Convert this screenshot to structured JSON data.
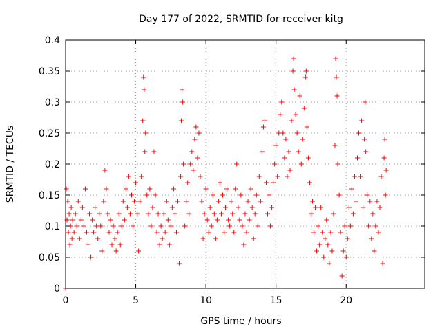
{
  "chart_data": {
    "type": "scatter",
    "title": "Day 177 of 2022, SRMTID for receiver kitg",
    "xlabel": "GPS time / hours",
    "ylabel": "SRMTID / TECUs",
    "xlim": [
      0,
      25.6
    ],
    "ylim": [
      0,
      0.4
    ],
    "xticks": [
      0,
      5,
      10,
      15,
      20
    ],
    "xtick_labels": [
      "0",
      "5",
      "10",
      "15",
      "20"
    ],
    "yticks": [
      0,
      0.05,
      0.1,
      0.15,
      0.2,
      0.25,
      0.3,
      0.35,
      0.4
    ],
    "ytick_labels": [
      "0",
      "0.05",
      "0.1",
      "0.15",
      "0.2",
      "0.25",
      "0.3",
      "0.35",
      "0.4"
    ],
    "grid": true,
    "marker": "+",
    "color": "#ff0000",
    "series": [
      {
        "name": "SRMTID",
        "points": [
          [
            0.0,
            0.0
          ],
          [
            0.05,
            0.16
          ],
          [
            0.1,
            0.11
          ],
          [
            0.15,
            0.14
          ],
          [
            0.2,
            0.09
          ],
          [
            0.25,
            0.12
          ],
          [
            0.3,
            0.07
          ],
          [
            0.35,
            0.1
          ],
          [
            0.4,
            0.13
          ],
          [
            0.45,
            0.08
          ],
          [
            0.5,
            0.11
          ],
          [
            0.6,
            0.09
          ],
          [
            0.7,
            0.12
          ],
          [
            0.8,
            0.1
          ],
          [
            0.9,
            0.14
          ],
          [
            1.0,
            0.08
          ],
          [
            1.1,
            0.11
          ],
          [
            1.2,
            0.13
          ],
          [
            1.3,
            0.1
          ],
          [
            1.4,
            0.16
          ],
          [
            1.5,
            0.09
          ],
          [
            1.6,
            0.07
          ],
          [
            1.7,
            0.12
          ],
          [
            1.8,
            0.05
          ],
          [
            1.9,
            0.11
          ],
          [
            2.0,
            0.09
          ],
          [
            2.1,
            0.13
          ],
          [
            2.2,
            0.1
          ],
          [
            2.3,
            0.08
          ],
          [
            2.4,
            0.12
          ],
          [
            2.5,
            0.1
          ],
          [
            2.6,
            0.06
          ],
          [
            2.7,
            0.14
          ],
          [
            2.8,
            0.19
          ],
          [
            2.9,
            0.16
          ],
          [
            3.0,
            0.12
          ],
          [
            3.1,
            0.09
          ],
          [
            3.2,
            0.11
          ],
          [
            3.3,
            0.07
          ],
          [
            3.4,
            0.1
          ],
          [
            3.5,
            0.08
          ],
          [
            3.6,
            0.06
          ],
          [
            3.7,
            0.09
          ],
          [
            3.8,
            0.12
          ],
          [
            3.9,
            0.07
          ],
          [
            4.0,
            0.1
          ],
          [
            4.1,
            0.14
          ],
          [
            4.2,
            0.11
          ],
          [
            4.3,
            0.16
          ],
          [
            4.4,
            0.13
          ],
          [
            4.5,
            0.18
          ],
          [
            4.6,
            0.12
          ],
          [
            4.7,
            0.15
          ],
          [
            4.8,
            0.1
          ],
          [
            4.9,
            0.14
          ],
          [
            5.0,
            0.17
          ],
          [
            5.1,
            0.12
          ],
          [
            5.2,
            0.06
          ],
          [
            5.3,
            0.14
          ],
          [
            5.4,
            0.18
          ],
          [
            5.5,
            0.27
          ],
          [
            5.55,
            0.34
          ],
          [
            5.6,
            0.32
          ],
          [
            5.65,
            0.22
          ],
          [
            5.7,
            0.25
          ],
          [
            5.8,
            0.15
          ],
          [
            5.9,
            0.12
          ],
          [
            6.0,
            0.16
          ],
          [
            6.1,
            0.1
          ],
          [
            6.2,
            0.13
          ],
          [
            6.3,
            0.22
          ],
          [
            6.4,
            0.15
          ],
          [
            6.5,
            0.09
          ],
          [
            6.6,
            0.12
          ],
          [
            6.7,
            0.07
          ],
          [
            6.8,
            0.1
          ],
          [
            6.9,
            0.08
          ],
          [
            7.0,
            0.12
          ],
          [
            7.1,
            0.09
          ],
          [
            7.2,
            0.14
          ],
          [
            7.3,
            0.11
          ],
          [
            7.4,
            0.07
          ],
          [
            7.5,
            0.1
          ],
          [
            7.6,
            0.13
          ],
          [
            7.7,
            0.16
          ],
          [
            7.8,
            0.12
          ],
          [
            7.9,
            0.09
          ],
          [
            8.0,
            0.14
          ],
          [
            8.1,
            0.04
          ],
          [
            8.2,
            0.18
          ],
          [
            8.25,
            0.27
          ],
          [
            8.3,
            0.32
          ],
          [
            8.35,
            0.3
          ],
          [
            8.4,
            0.2
          ],
          [
            8.5,
            0.1
          ],
          [
            8.6,
            0.14
          ],
          [
            8.7,
            0.17
          ],
          [
            8.8,
            0.12
          ],
          [
            8.9,
            0.2
          ],
          [
            9.0,
            0.22
          ],
          [
            9.1,
            0.19
          ],
          [
            9.2,
            0.24
          ],
          [
            9.3,
            0.26
          ],
          [
            9.4,
            0.21
          ],
          [
            9.5,
            0.25
          ],
          [
            9.6,
            0.18
          ],
          [
            9.7,
            0.14
          ],
          [
            9.8,
            0.08
          ],
          [
            9.9,
            0.12
          ],
          [
            10.0,
            0.16
          ],
          [
            10.1,
            0.11
          ],
          [
            10.2,
            0.09
          ],
          [
            10.3,
            0.13
          ],
          [
            10.4,
            0.1
          ],
          [
            10.5,
            0.15
          ],
          [
            10.6,
            0.12
          ],
          [
            10.7,
            0.08
          ],
          [
            10.8,
            0.11
          ],
          [
            10.9,
            0.14
          ],
          [
            11.0,
            0.17
          ],
          [
            11.1,
            0.12
          ],
          [
            11.2,
            0.15
          ],
          [
            11.3,
            0.09
          ],
          [
            11.4,
            0.13
          ],
          [
            11.5,
            0.16
          ],
          [
            11.6,
            0.11
          ],
          [
            11.7,
            0.1
          ],
          [
            11.8,
            0.14
          ],
          [
            11.9,
            0.12
          ],
          [
            12.0,
            0.09
          ],
          [
            12.1,
            0.16
          ],
          [
            12.2,
            0.2
          ],
          [
            12.3,
            0.13
          ],
          [
            12.4,
            0.11
          ],
          [
            12.5,
            0.15
          ],
          [
            12.6,
            0.1
          ],
          [
            12.7,
            0.07
          ],
          [
            12.8,
            0.12
          ],
          [
            12.9,
            0.09
          ],
          [
            13.0,
            0.14
          ],
          [
            13.1,
            0.11
          ],
          [
            13.2,
            0.16
          ],
          [
            13.3,
            0.13
          ],
          [
            13.4,
            0.08
          ],
          [
            13.5,
            0.12
          ],
          [
            13.6,
            0.15
          ],
          [
            13.7,
            0.1
          ],
          [
            13.8,
            0.18
          ],
          [
            13.9,
            0.14
          ],
          [
            14.0,
            0.22
          ],
          [
            14.1,
            0.26
          ],
          [
            14.2,
            0.27
          ],
          [
            14.3,
            0.17
          ],
          [
            14.4,
            0.12
          ],
          [
            14.5,
            0.15
          ],
          [
            14.6,
            0.1
          ],
          [
            14.7,
            0.13
          ],
          [
            14.8,
            0.17
          ],
          [
            14.9,
            0.2
          ],
          [
            15.0,
            0.23
          ],
          [
            15.1,
            0.18
          ],
          [
            15.2,
            0.25
          ],
          [
            15.3,
            0.28
          ],
          [
            15.4,
            0.3
          ],
          [
            15.5,
            0.25
          ],
          [
            15.6,
            0.21
          ],
          [
            15.7,
            0.24
          ],
          [
            15.8,
            0.18
          ],
          [
            15.9,
            0.22
          ],
          [
            16.0,
            0.19
          ],
          [
            16.1,
            0.27
          ],
          [
            16.2,
            0.35
          ],
          [
            16.25,
            0.37
          ],
          [
            16.3,
            0.32
          ],
          [
            16.4,
            0.28
          ],
          [
            16.5,
            0.25
          ],
          [
            16.6,
            0.22
          ],
          [
            16.7,
            0.31
          ],
          [
            16.8,
            0.2
          ],
          [
            16.9,
            0.24
          ],
          [
            17.0,
            0.29
          ],
          [
            17.1,
            0.34
          ],
          [
            17.15,
            0.35
          ],
          [
            17.2,
            0.26
          ],
          [
            17.3,
            0.21
          ],
          [
            17.4,
            0.17
          ],
          [
            17.5,
            0.12
          ],
          [
            17.6,
            0.14
          ],
          [
            17.7,
            0.09
          ],
          [
            17.8,
            0.13
          ],
          [
            17.9,
            0.06
          ],
          [
            18.0,
            0.1
          ],
          [
            18.1,
            0.07
          ],
          [
            18.2,
            0.13
          ],
          [
            18.3,
            0.09
          ],
          [
            18.4,
            0.05
          ],
          [
            18.5,
            0.08
          ],
          [
            18.6,
            0.11
          ],
          [
            18.7,
            0.07
          ],
          [
            18.8,
            0.04
          ],
          [
            18.9,
            0.09
          ],
          [
            19.0,
            0.06
          ],
          [
            19.1,
            0.12
          ],
          [
            19.2,
            0.23
          ],
          [
            19.25,
            0.37
          ],
          [
            19.3,
            0.34
          ],
          [
            19.35,
            0.31
          ],
          [
            19.4,
            0.2
          ],
          [
            19.5,
            0.15
          ],
          [
            19.6,
            0.09
          ],
          [
            19.7,
            0.02
          ],
          [
            19.8,
            0.06
          ],
          [
            19.9,
            0.1
          ],
          [
            20.0,
            0.05
          ],
          [
            20.1,
            0.08
          ],
          [
            20.2,
            0.13
          ],
          [
            20.3,
            0.1
          ],
          [
            20.4,
            0.16
          ],
          [
            20.5,
            0.12
          ],
          [
            20.6,
            0.18
          ],
          [
            20.7,
            0.14
          ],
          [
            20.8,
            0.21
          ],
          [
            20.9,
            0.25
          ],
          [
            21.0,
            0.18
          ],
          [
            21.1,
            0.27
          ],
          [
            21.2,
            0.13
          ],
          [
            21.3,
            0.24
          ],
          [
            21.35,
            0.3
          ],
          [
            21.4,
            0.22
          ],
          [
            21.5,
            0.15
          ],
          [
            21.6,
            0.1
          ],
          [
            21.7,
            0.14
          ],
          [
            21.8,
            0.08
          ],
          [
            21.9,
            0.12
          ],
          [
            22.0,
            0.06
          ],
          [
            22.1,
            0.1
          ],
          [
            22.2,
            0.14
          ],
          [
            22.3,
            0.09
          ],
          [
            22.4,
            0.13
          ],
          [
            22.5,
            0.18
          ],
          [
            22.6,
            0.04
          ],
          [
            22.7,
            0.21
          ],
          [
            22.75,
            0.24
          ],
          [
            22.8,
            0.15
          ],
          [
            22.85,
            0.19
          ]
        ]
      }
    ]
  }
}
